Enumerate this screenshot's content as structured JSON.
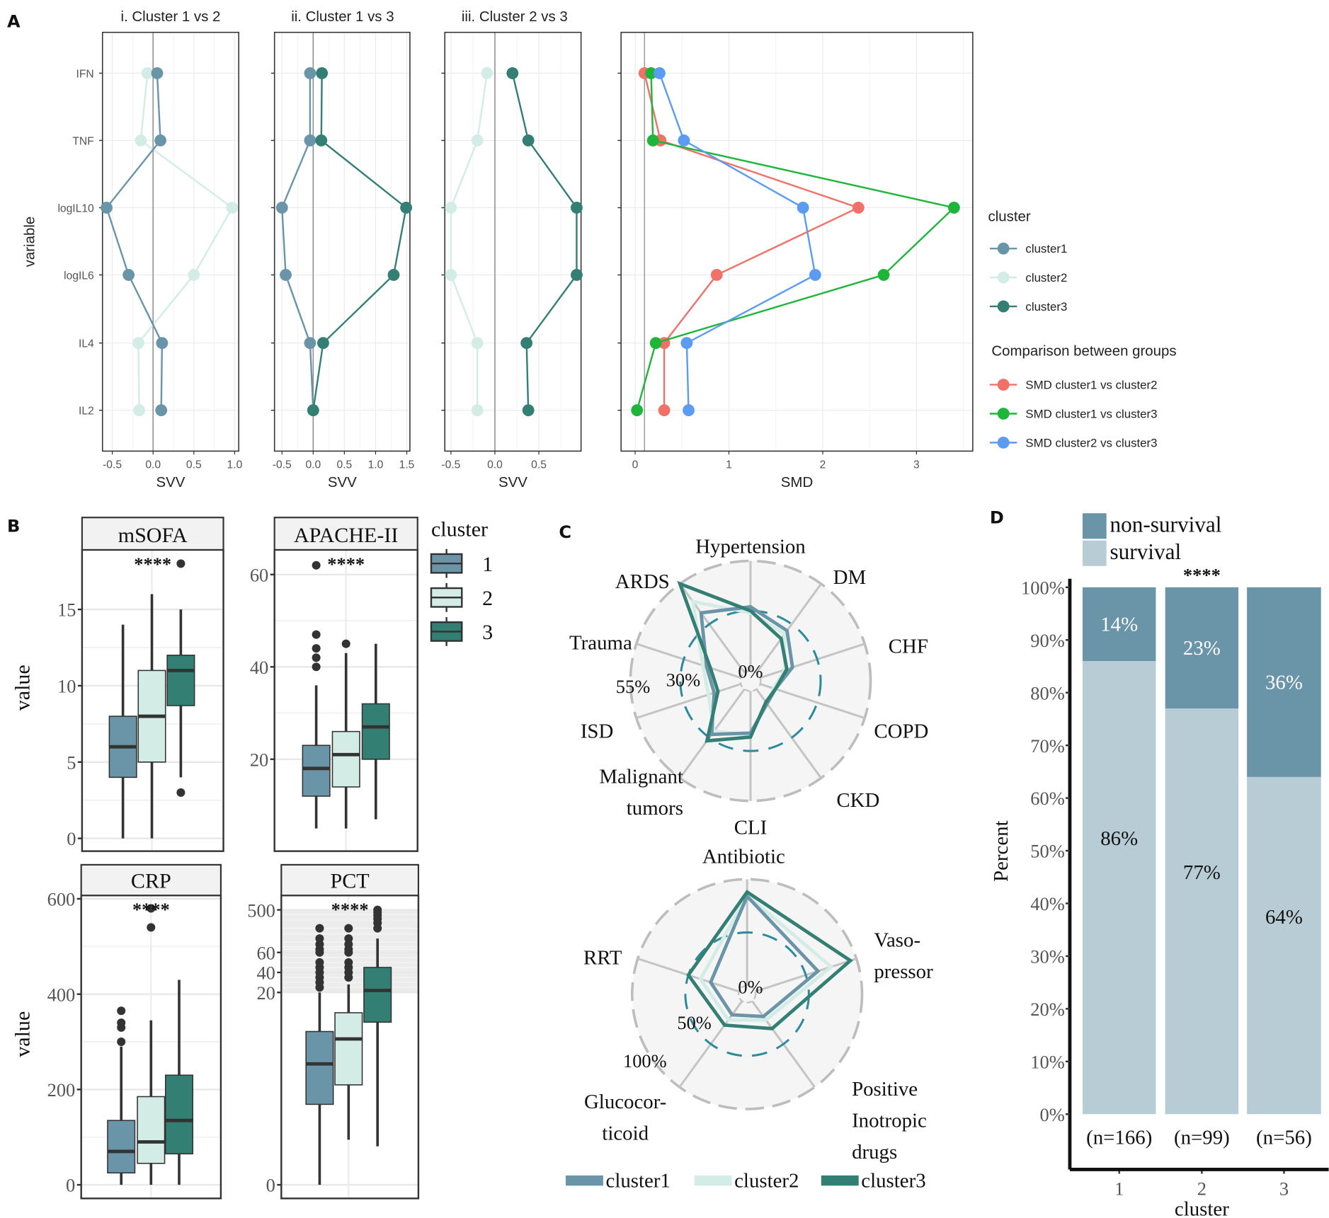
{
  "figure": {
    "panel_letters": {
      "A": "A",
      "B": "B",
      "C": "C",
      "D": "D"
    }
  },
  "colors": {
    "cluster1": "#6a95a8",
    "cluster2": "#d4ece6",
    "cluster3": "#347f73",
    "smd_c1_c2": "#f07167",
    "smd_c1_c3": "#1fb53a",
    "smd_c2_c3": "#5b9bf2",
    "radar_dashed": "#2b8a9c",
    "survival": "#b8ccd6",
    "non_survival": "#6a95a8"
  },
  "chart_data": [
    {
      "id": "A-svv",
      "type": "line",
      "ylabel": "variable",
      "xlabel": "SVV",
      "categories": [
        "IFN",
        "TNF",
        "logIL10",
        "logIL6",
        "IL4",
        "IL2"
      ],
      "panels": [
        {
          "title": "i. Cluster 1 vs 2",
          "xlim": [
            -0.62,
            1.05
          ],
          "xticks": [
            "-0.5",
            "0.0",
            "0.5",
            "1.0"
          ],
          "xtick_values": [
            -0.5,
            0,
            0.5,
            1.0
          ],
          "series": [
            {
              "name": "cluster2",
              "values": [
                -0.07,
                -0.15,
                0.97,
                0.5,
                -0.18,
                -0.17
              ]
            },
            {
              "name": "cluster1",
              "values": [
                0.05,
                0.09,
                -0.57,
                -0.3,
                0.11,
                0.1
              ]
            }
          ]
        },
        {
          "title": "ii. Cluster 1 vs 3",
          "xlim": [
            -0.62,
            1.55
          ],
          "xticks": [
            "-0.5",
            "0.0",
            "0.5",
            "1.0",
            "1.5"
          ],
          "xtick_values": [
            -0.5,
            0,
            0.5,
            1.0,
            1.5
          ],
          "series": [
            {
              "name": "cluster1",
              "values": [
                -0.05,
                -0.05,
                -0.5,
                -0.44,
                -0.05,
                0.0
              ]
            },
            {
              "name": "cluster3",
              "values": [
                0.14,
                0.13,
                1.49,
                1.29,
                0.16,
                0.0
              ]
            }
          ]
        },
        {
          "title": "iii. Cluster 2 vs 3",
          "xlim": [
            -0.57,
            0.98
          ],
          "xticks": [
            "-0.5",
            "0.0",
            "0.5"
          ],
          "xtick_values": [
            -0.5,
            0,
            0.5
          ],
          "series": [
            {
              "name": "cluster2",
              "values": [
                -0.09,
                -0.2,
                -0.5,
                -0.5,
                -0.2,
                -0.2
              ]
            },
            {
              "name": "cluster3",
              "values": [
                0.2,
                0.38,
                0.93,
                0.93,
                0.36,
                0.38
              ]
            }
          ]
        }
      ]
    },
    {
      "id": "A-smd",
      "type": "line",
      "xlabel": "SMD",
      "xlim": [
        -0.15,
        3.6
      ],
      "xticks": [
        "0",
        "1",
        "2",
        "3"
      ],
      "xtick_values": [
        0,
        1,
        2,
        3
      ],
      "reference_line": 0.1,
      "categories": [
        "IFN",
        "TNF",
        "logIL10",
        "logIL6",
        "IL4",
        "IL2"
      ],
      "series": [
        {
          "name": "SMD cluster1 vs cluster2",
          "color_key": "smd_c1_c2",
          "values": [
            0.1,
            0.27,
            2.38,
            0.87,
            0.31,
            0.31
          ]
        },
        {
          "name": "SMD cluster1 vs cluster3",
          "color_key": "smd_c1_c3",
          "values": [
            0.17,
            0.19,
            3.4,
            2.65,
            0.22,
            0.02
          ]
        },
        {
          "name": "SMD cluster2 vs cluster3",
          "color_key": "smd_c2_c3",
          "values": [
            0.26,
            0.52,
            1.79,
            1.92,
            0.55,
            0.57
          ]
        }
      ],
      "legend": {
        "placement": "right",
        "cluster_title": "cluster",
        "cluster_items": [
          "cluster1",
          "cluster2",
          "cluster3"
        ],
        "comparison_title": "Comparison between groups",
        "comparison_items": [
          "SMD cluster1 vs cluster2",
          "SMD cluster1 vs cluster3",
          "SMD cluster2 vs cluster3"
        ]
      }
    },
    {
      "id": "B-boxplots",
      "type": "box",
      "ylabel": "value",
      "legend": {
        "title": "cluster",
        "items": [
          "1",
          "2",
          "3"
        ],
        "placement": "right"
      },
      "facets": [
        {
          "title": "mSOFA",
          "significance": "****",
          "yticks": [
            "0",
            "5",
            "10",
            "15"
          ],
          "ytick_values": [
            0,
            5,
            10,
            15
          ],
          "ylim": [
            -1.8,
            19.5
          ],
          "boxes": [
            {
              "cluster": "1",
              "min": 0,
              "q1": 4,
              "median": 6,
              "q3": 8,
              "max": 14,
              "outliers": []
            },
            {
              "cluster": "2",
              "min": 0,
              "q1": 5,
              "median": 8,
              "q3": 11,
              "max": 16,
              "outliers": []
            },
            {
              "cluster": "3",
              "min": 4,
              "q1": 8.7,
              "median": 11,
              "q3": 12,
              "max": 15,
              "outliers": [
                18,
                3
              ]
            }
          ]
        },
        {
          "title": "APACHE-II",
          "significance": "****",
          "yticks": [
            "20",
            "40",
            "60"
          ],
          "ytick_values": [
            20,
            40,
            60
          ],
          "ylim": [
            1.5,
            66
          ],
          "boxes": [
            {
              "cluster": "1",
              "min": 5,
              "q1": 12,
              "median": 18,
              "q3": 23,
              "max": 36,
              "outliers": [
                40,
                42,
                44,
                47,
                62
              ]
            },
            {
              "cluster": "2",
              "min": 5,
              "q1": 14,
              "median": 21,
              "q3": 26,
              "max": 43,
              "outliers": [
                45
              ]
            },
            {
              "cluster": "3",
              "min": 7,
              "q1": 20,
              "median": 27,
              "q3": 32,
              "max": 45,
              "outliers": []
            }
          ]
        },
        {
          "title": "CRP",
          "significance": "****",
          "yticks": [
            "0",
            "200",
            "400",
            "600"
          ],
          "ytick_values": [
            0,
            200,
            400,
            600
          ],
          "ylim": [
            -30,
            630
          ],
          "boxes": [
            {
              "cluster": "1",
              "min": 0,
              "q1": 25,
              "median": 70,
              "q3": 135,
              "max": 290,
              "outliers": [
                300,
                330,
                340,
                365
              ]
            },
            {
              "cluster": "2",
              "min": 0,
              "q1": 45,
              "median": 90,
              "q3": 185,
              "max": 345,
              "outliers": [
                540,
                580
              ]
            },
            {
              "cluster": "3",
              "min": 0,
              "q1": 65,
              "median": 135,
              "q3": 230,
              "max": 430,
              "outliers": []
            }
          ]
        },
        {
          "title": "PCT",
          "significance": "****",
          "yticks": [
            "0",
            "20",
            "40",
            "60",
            "500"
          ],
          "ytick_values": [
            0,
            20,
            40,
            60,
            500
          ],
          "ylim": [
            -1,
            600
          ],
          "scale": "pseudo-log",
          "boxes": [
            {
              "cluster": "1",
              "min": 0,
              "q1": 3.5,
              "median": 7.9,
              "q3": 12.7,
              "max": 20,
              "outliers": [
                25,
                30,
                35,
                40,
                45,
                50,
                60,
                70,
                90,
                120,
                200
              ]
            },
            {
              "cluster": "2",
              "min": 1.1,
              "q1": 5.4,
              "median": 11.5,
              "q3": 16,
              "max": 28,
              "outliers": [
                35,
                40,
                45,
                50,
                60,
                70,
                90,
                120,
                200
              ]
            },
            {
              "cluster": "3",
              "min": 0.8,
              "q1": 14.3,
              "median": 22,
              "q3": 45,
              "max": 120,
              "outliers": [
                200,
                260,
                320,
                380,
                440,
                500
              ]
            }
          ]
        }
      ]
    },
    {
      "id": "C-radar-comorbidities",
      "type": "radar",
      "axes": [
        "Hypertension",
        "DM",
        "CHF",
        "COPD",
        "CKD",
        "CLI",
        "Malignant tumors",
        "ISD",
        "Trauma",
        "ARDS"
      ],
      "ring_labels": [
        "0%",
        "30%",
        "55%"
      ],
      "ring_values": [
        0,
        30,
        55
      ],
      "series": [
        {
          "name": "cluster2",
          "values": [
            29,
            24,
            13,
            7,
            9,
            22,
            26,
            17,
            20,
            44
          ]
        },
        {
          "name": "cluster1",
          "values": [
            32,
            26,
            17,
            8,
            9,
            21,
            28,
            14,
            18,
            37
          ]
        },
        {
          "name": "cluster3",
          "values": [
            30,
            21,
            14,
            8,
            8,
            23,
            32,
            12,
            16,
            55
          ]
        }
      ]
    },
    {
      "id": "C-radar-treatments",
      "type": "radar",
      "axes": [
        "Antibiotic",
        "Vaso-\npressor",
        "Positive\nInotropic\ndrugs",
        "Glucocor-\nticoid",
        "RRT"
      ],
      "ring_labels": [
        "0%",
        "50%",
        "100%"
      ],
      "ring_values": [
        0,
        50,
        100
      ],
      "series": [
        {
          "name": "cluster2",
          "values": [
            85,
            75,
            22,
            22,
            38
          ]
        },
        {
          "name": "cluster1",
          "values": [
            84,
            62,
            18,
            16,
            28
          ]
        },
        {
          "name": "cluster3",
          "values": [
            88,
            94,
            32,
            28,
            50
          ]
        }
      ],
      "legend": {
        "items": [
          "cluster1",
          "cluster2",
          "cluster3"
        ],
        "placement": "bottom"
      }
    },
    {
      "id": "D-survival",
      "type": "bar",
      "stacked": true,
      "xlabel": "cluster",
      "ylabel": "Percent",
      "categories": [
        "1",
        "2",
        "3"
      ],
      "category_n": [
        "(n=166)",
        "(n=99)",
        "(n=56)"
      ],
      "yticks": [
        "0%",
        "10%",
        "20%",
        "30%",
        "40%",
        "50%",
        "60%",
        "70%",
        "80%",
        "90%",
        "100%"
      ],
      "ylim": [
        0,
        100
      ],
      "significance": "****",
      "series": [
        {
          "name": "survival",
          "values": [
            86,
            77,
            64
          ],
          "labels": [
            "86%",
            "77%",
            "64%"
          ]
        },
        {
          "name": "non-survival",
          "values": [
            14,
            23,
            36
          ],
          "labels": [
            "14%",
            "23%",
            "36%"
          ]
        }
      ],
      "legend": {
        "items": [
          "non-survival",
          "survival"
        ],
        "placement": "top"
      }
    }
  ]
}
